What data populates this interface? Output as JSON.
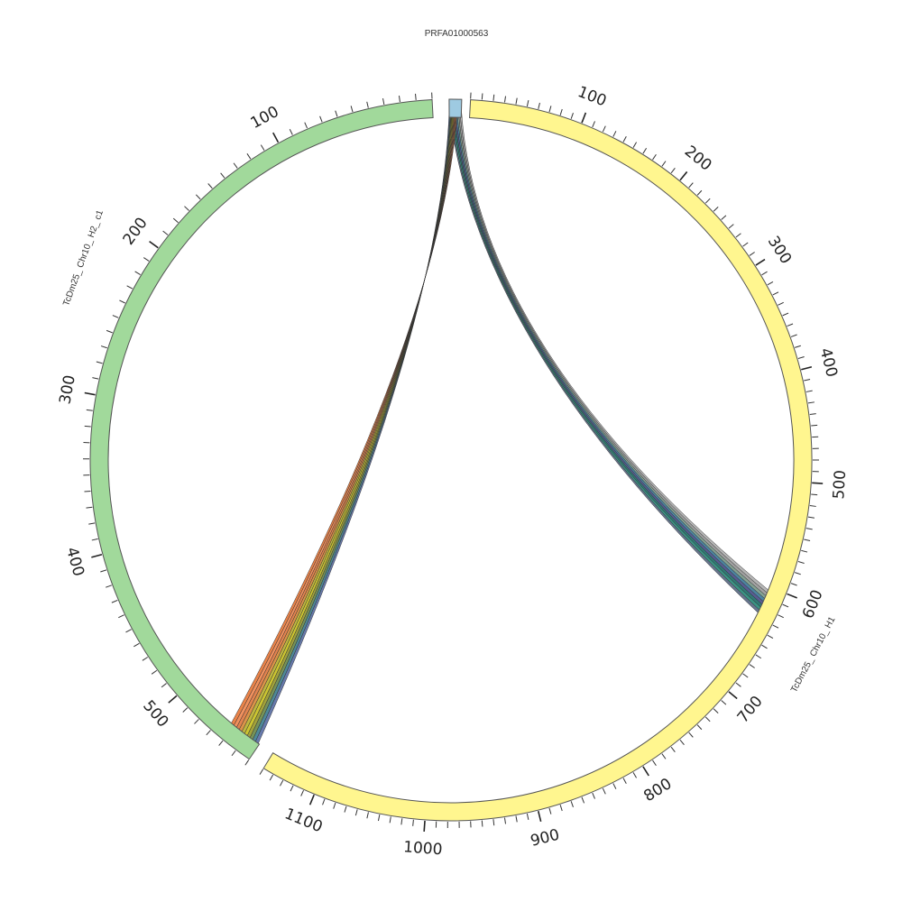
{
  "diagram": {
    "type": "circos",
    "segments": [
      {
        "id": "PRFA01000563",
        "label": "PRFA01000563",
        "length": 12,
        "color": "#9ecae1",
        "major_tick_labels": []
      },
      {
        "id": "TcDm25_Chr10_H1",
        "label": "TcDm25_ Chr10_ H1",
        "length": 1150,
        "color": "#fff68f",
        "major_tick_labels": [
          "100",
          "200",
          "300",
          "400",
          "500",
          "600",
          "700",
          "800",
          "900",
          "1000",
          "1100"
        ]
      },
      {
        "id": "TcDm25_Chr10_H2_c1",
        "label": "TcDm25_ Chr10_ H2_ c1",
        "length": 560,
        "color": "#a1d99b",
        "major_tick_labels": [
          "100",
          "200",
          "300",
          "400",
          "500"
        ]
      }
    ],
    "links": [
      {
        "from": "PRFA01000563",
        "to": "TcDm25_Chr10_H1",
        "from_range": [
          0,
          12
        ],
        "to_range": [
          605,
          628
        ],
        "colors": [
          "#5a6a85",
          "#2a8a7a",
          "#1f6f6a",
          "#4a4f8a",
          "#3d7a99",
          "#7a9a8a",
          "#9a9a9a",
          "#b0b0b0"
        ]
      },
      {
        "from": "PRFA01000563",
        "to": "TcDm25_Chr10_H2_c1",
        "from_range": [
          0,
          8
        ],
        "to_range": [
          538,
          560
        ],
        "colors": [
          "#5a6fa5",
          "#3f7f8f",
          "#6a8a4a",
          "#9a9a2a",
          "#c8c020",
          "#b8b030",
          "#d88a3a",
          "#e07840",
          "#f08850",
          "#e8783a"
        ]
      }
    ]
  }
}
